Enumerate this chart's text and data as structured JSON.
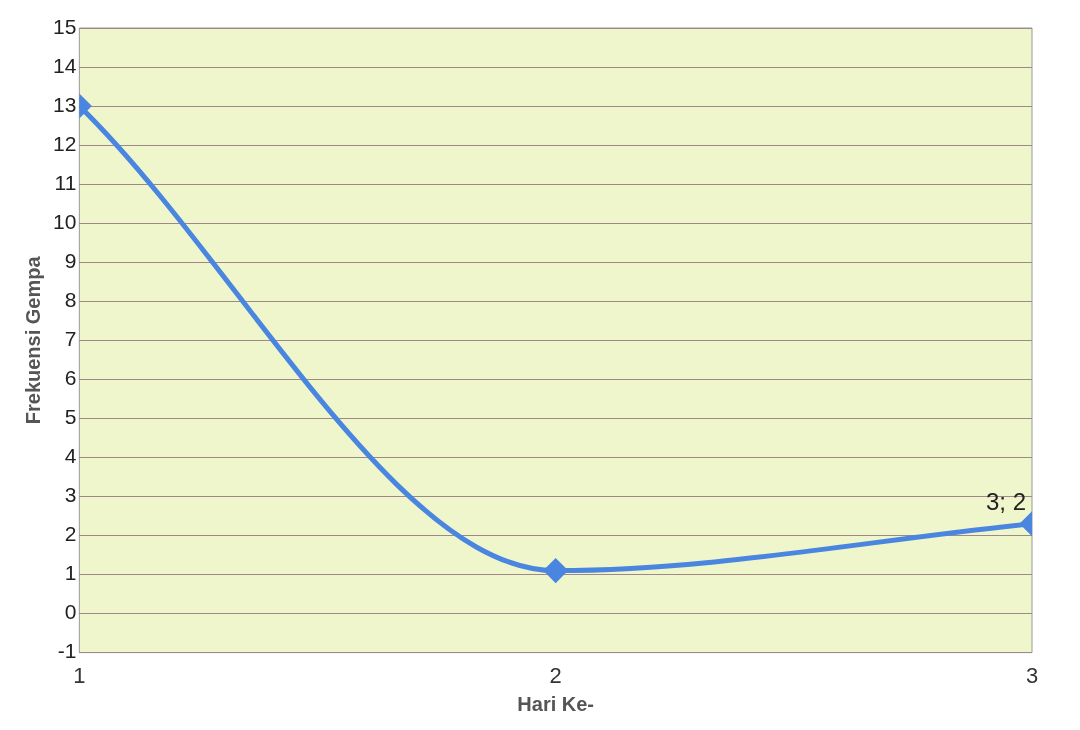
{
  "chart_data": {
    "type": "line",
    "xlabel": "Hari Ke-",
    "ylabel": "Frekuensi Gempa",
    "x": [
      1,
      2,
      3
    ],
    "series": [
      {
        "color": "#4a86e0",
        "values": [
          13,
          1.1,
          2.3
        ]
      }
    ],
    "xlim": [
      1,
      3
    ],
    "xticks": [
      1,
      2,
      3
    ],
    "ylim": [
      -1,
      15
    ],
    "yticks": [
      -1,
      0,
      1,
      2,
      3,
      4,
      5,
      6,
      7,
      8,
      9,
      10,
      11,
      12,
      13,
      14,
      15
    ],
    "grid": "y",
    "legend": false,
    "marker": "diamond",
    "line_style": "solid",
    "annotations": [
      {
        "text": "3; 2",
        "x": 3,
        "y": 2.3
      }
    ]
  }
}
